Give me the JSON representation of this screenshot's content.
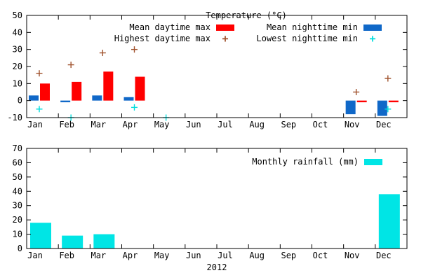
{
  "icons": {
    "plus": "+"
  },
  "chart_data": [
    {
      "type": "bar",
      "title": "Temperature (°C)",
      "categories": [
        "Jan",
        "Feb",
        "Mar",
        "Apr",
        "May",
        "Jun",
        "Jul",
        "Aug",
        "Sep",
        "Oct",
        "Nov",
        "Dec"
      ],
      "ylim": [
        -10,
        50
      ],
      "yticks": [
        -10,
        0,
        10,
        20,
        30,
        40,
        50
      ],
      "grid": false,
      "legend_position": "top-center",
      "series": [
        {
          "name": "Mean daytime max",
          "kind": "bar",
          "color": "#ff0000",
          "values": [
            10,
            11,
            17,
            14,
            null,
            null,
            null,
            null,
            null,
            null,
            -1,
            -1
          ]
        },
        {
          "name": "Mean nighttime min",
          "kind": "bar",
          "color": "#1068c8",
          "values": [
            3,
            -1,
            3,
            2,
            null,
            null,
            null,
            null,
            null,
            null,
            -8,
            -9
          ]
        },
        {
          "name": "Highest daytime max",
          "kind": "point",
          "marker": "plus",
          "color": "#a0522d",
          "values": [
            16,
            21,
            28,
            30,
            null,
            null,
            null,
            null,
            null,
            null,
            5,
            13
          ]
        },
        {
          "name": "Lowest nighttime min",
          "kind": "point",
          "marker": "plus",
          "color": "#00dddd",
          "values": [
            -5,
            -10,
            null,
            -4,
            -10,
            null,
            null,
            null,
            null,
            null,
            null,
            -5
          ]
        }
      ]
    },
    {
      "type": "bar",
      "xlabel": "2012",
      "categories": [
        "Jan",
        "Feb",
        "Mar",
        "Apr",
        "May",
        "Jun",
        "Jul",
        "Aug",
        "Sep",
        "Oct",
        "Nov",
        "Dec"
      ],
      "ylim": [
        0,
        70
      ],
      "yticks": [
        0,
        10,
        20,
        30,
        40,
        50,
        60,
        70
      ],
      "grid": false,
      "legend_position": "top-right",
      "series": [
        {
          "name": "Monthly rainfall (mm)",
          "kind": "bar",
          "color": "#00e5e5",
          "values": [
            18,
            9,
            10,
            0,
            0,
            0,
            0,
            0,
            0,
            0,
            0,
            38
          ]
        }
      ]
    }
  ]
}
